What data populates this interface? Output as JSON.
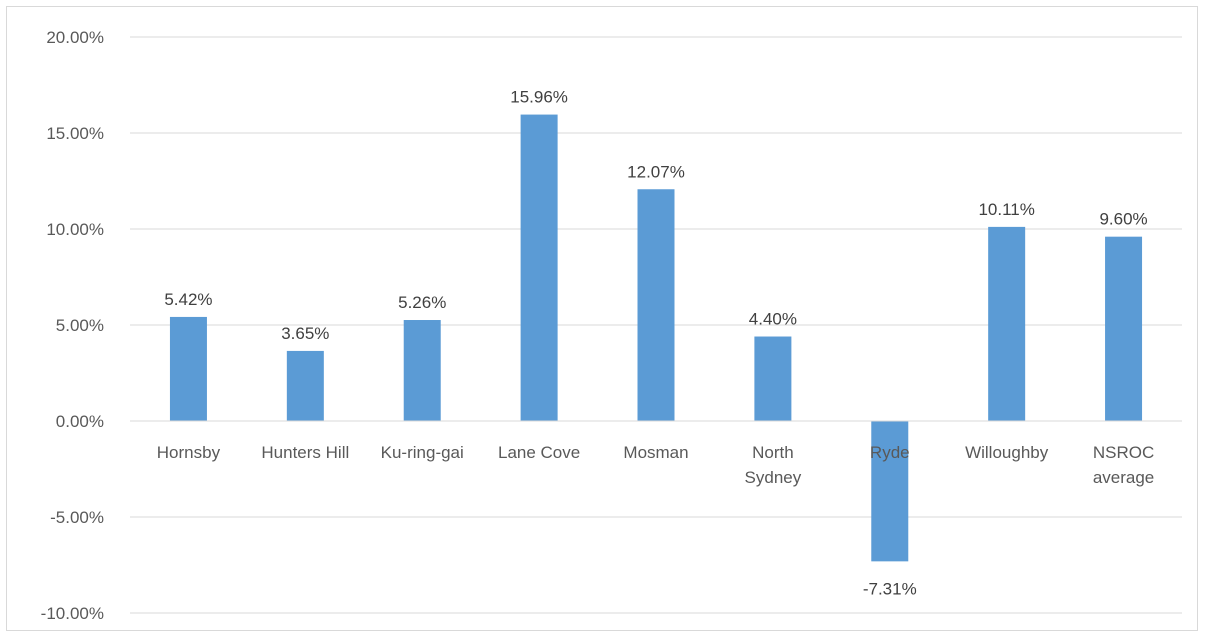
{
  "chart_data": {
    "type": "bar",
    "title": "",
    "xlabel": "",
    "ylabel": "",
    "categories": [
      [
        "Hornsby"
      ],
      [
        "Hunters Hill"
      ],
      [
        "Ku-ring-gai"
      ],
      [
        "Lane Cove"
      ],
      [
        "Mosman"
      ],
      [
        "North",
        "Sydney"
      ],
      [
        "Ryde"
      ],
      [
        "Willoughby"
      ],
      [
        "NSROC",
        "average"
      ]
    ],
    "values": [
      5.42,
      3.65,
      5.26,
      15.96,
      12.07,
      4.4,
      -7.31,
      10.11,
      9.6
    ],
    "value_labels": [
      "5.42%",
      "3.65%",
      "5.26%",
      "15.96%",
      "12.07%",
      "4.40%",
      "-7.31%",
      "10.11%",
      "9.60%"
    ],
    "ylim": [
      -10,
      20
    ],
    "yticks": [
      20,
      15,
      10,
      5,
      0,
      -5,
      -10
    ],
    "ytick_labels": [
      "20.00%",
      "15.00%",
      "10.00%",
      "5.00%",
      "0.00%",
      "-5.00%",
      "-10.00%"
    ],
    "grid": true,
    "legend": "none",
    "colors": {
      "bar": "#5b9bd5",
      "grid": "#d9d9d9",
      "axis": "#d9d9d9"
    }
  }
}
